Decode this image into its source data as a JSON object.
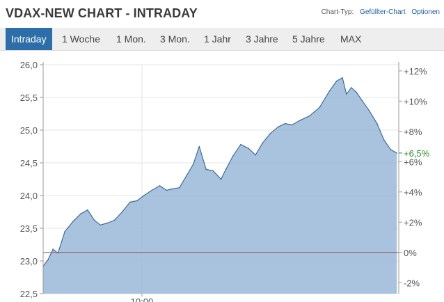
{
  "header": {
    "title": "VDAX-NEW CHART - INTRADAY",
    "chart_type_label": "Chart-Typ:",
    "chart_type_value": "Gefüllter-Chart",
    "options_label": "Optionen"
  },
  "tabs": [
    {
      "label": "Intraday",
      "active": true
    },
    {
      "label": "1 Woche",
      "active": false
    },
    {
      "label": "1 Mon.",
      "active": false
    },
    {
      "label": "3 Mon.",
      "active": false
    },
    {
      "label": "1 Jahr",
      "active": false
    },
    {
      "label": "3 Jahre",
      "active": false
    },
    {
      "label": "5 Jahre",
      "active": false
    },
    {
      "label": "MAX",
      "active": false
    }
  ],
  "colors": {
    "accent": "#2e6ea8",
    "area_fill": "#9ab9d8",
    "line": "#3d6d99",
    "baseline": "#8c5a50",
    "current_change": "#2b8a2b"
  },
  "chart_data": {
    "type": "area",
    "title": "VDAX-NEW CHART - INTRADAY",
    "xlabel": "",
    "ylabel": "",
    "ylim": [
      22.5,
      26.0
    ],
    "y_ticks": [
      "26,0",
      "25,5",
      "25,0",
      "24,5",
      "24,0",
      "23,5",
      "23,0",
      "22,5"
    ],
    "y_tick_values": [
      26.0,
      25.5,
      25.0,
      24.5,
      24.0,
      23.5,
      23.0,
      22.5
    ],
    "y2_ticks": [
      "+12%",
      "+10%",
      "+8%",
      "+6%",
      "+4%",
      "+2%",
      "0%",
      "-2%"
    ],
    "y2_tick_values": [
      12,
      10,
      8,
      6,
      4,
      2,
      0,
      -2
    ],
    "x_ticks": [
      "10:00"
    ],
    "x_range_hours": [
      9.0,
      12.6
    ],
    "x_tick_hours": [
      10.0
    ],
    "reference_value": 23.13,
    "current_change_label": "+6,5%",
    "current_value": 24.65,
    "grid": true,
    "series": [
      {
        "x_hours": [
          9.0,
          9.05,
          9.1,
          9.15,
          9.22,
          9.3,
          9.38,
          9.45,
          9.52,
          9.58,
          9.65,
          9.72,
          9.8,
          9.88,
          9.95,
          10.02,
          10.1,
          10.18,
          10.25,
          10.3,
          10.38,
          10.45,
          10.52,
          10.58,
          10.65,
          10.72,
          10.8,
          10.85,
          10.92,
          11.0,
          11.08,
          11.15,
          11.22,
          11.3,
          11.38,
          11.45,
          11.52,
          11.6,
          11.7,
          11.8,
          11.9,
          11.97,
          12.03,
          12.07,
          12.12,
          12.17,
          12.23,
          12.3,
          12.38,
          12.45,
          12.52,
          12.58
        ],
        "values": [
          22.92,
          23.02,
          23.18,
          23.12,
          23.45,
          23.6,
          23.72,
          23.78,
          23.62,
          23.55,
          23.58,
          23.62,
          23.75,
          23.9,
          23.92,
          24.0,
          24.08,
          24.15,
          24.08,
          24.1,
          24.12,
          24.3,
          24.48,
          24.75,
          24.4,
          24.38,
          24.25,
          24.4,
          24.6,
          24.78,
          24.72,
          24.62,
          24.8,
          24.95,
          25.05,
          25.1,
          25.08,
          25.15,
          25.22,
          25.35,
          25.6,
          25.75,
          25.8,
          25.55,
          25.65,
          25.58,
          25.45,
          25.3,
          25.1,
          24.85,
          24.7,
          24.65
        ]
      }
    ]
  }
}
